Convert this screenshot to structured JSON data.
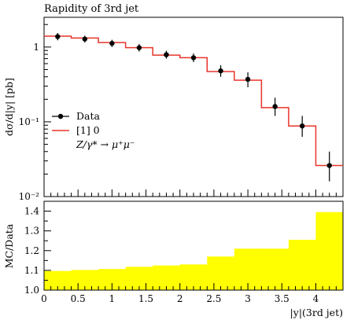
{
  "chart_data": [
    {
      "type": "line",
      "title": "Rapidity of 3rd jet",
      "ylabel": "dσ/d|y| [pb]",
      "yscale": "log",
      "ylim": [
        0.01,
        2.5
      ],
      "xlim": [
        0,
        4.4
      ],
      "y_tick_labels": [
        "10⁻²",
        "10⁻¹",
        "1"
      ],
      "grid": false,
      "legend_position": "left-middle",
      "legend": [
        {
          "label": "Data",
          "style": "black marker with error bar"
        },
        {
          "label": "[1] 0",
          "style": "red line"
        },
        {
          "label": "Z/γ* → μ⁺μ⁻",
          "style": "text only"
        }
      ],
      "bin_edges": [
        0,
        0.4,
        0.8,
        1.2,
        1.6,
        2.0,
        2.4,
        2.8,
        3.2,
        3.6,
        4.0,
        4.4
      ],
      "series": [
        {
          "name": "Data",
          "x": [
            0.2,
            0.6,
            1.0,
            1.4,
            1.8,
            2.2,
            2.6,
            3.0,
            3.4,
            3.8,
            4.2
          ],
          "values": [
            1.38,
            1.28,
            1.12,
            0.98,
            0.79,
            0.72,
            0.48,
            0.37,
            0.16,
            0.088,
            0.026
          ],
          "err_low": [
            1.23,
            1.15,
            1.0,
            0.87,
            0.7,
            0.63,
            0.4,
            0.29,
            0.12,
            0.063,
            0.016
          ],
          "err_high": [
            1.54,
            1.42,
            1.25,
            1.1,
            0.89,
            0.82,
            0.57,
            0.46,
            0.21,
            0.12,
            0.04
          ]
        },
        {
          "name": "[1] 0",
          "values": [
            1.4,
            1.32,
            1.15,
            0.98,
            0.78,
            0.72,
            0.47,
            0.36,
            0.155,
            0.088,
            0.026
          ]
        }
      ],
      "colors": {
        "data": "#000000",
        "mc": "#e8342a"
      }
    },
    {
      "type": "bar",
      "ylabel": "MC/Data",
      "xlabel": "|y|(3rd jet)",
      "xlim": [
        0,
        4.4
      ],
      "ylim": [
        1.0,
        1.45
      ],
      "x_tick_labels": [
        "0",
        "0.5",
        "1",
        "1.5",
        "2",
        "2.5",
        "3",
        "3.5",
        "4"
      ],
      "y_tick_labels": [
        "1.0",
        "1.1",
        "1.2",
        "1.3",
        "1.4"
      ],
      "bin_edges": [
        0,
        0.4,
        0.8,
        1.2,
        1.6,
        2.0,
        2.4,
        2.8,
        3.2,
        3.6,
        4.0,
        4.4
      ],
      "values": [
        1.097,
        1.102,
        1.107,
        1.118,
        1.125,
        1.13,
        1.17,
        1.21,
        1.21,
        1.255,
        1.395
      ],
      "colors": {
        "band": "#ffff00"
      }
    }
  ]
}
